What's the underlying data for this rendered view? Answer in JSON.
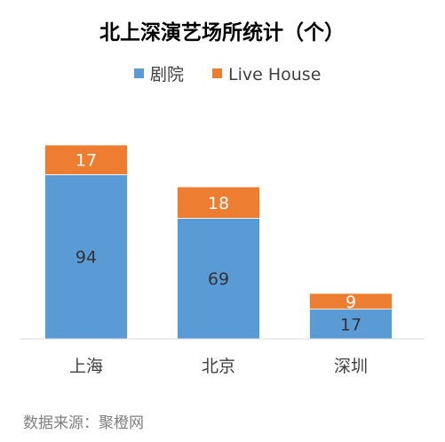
{
  "chart_data": {
    "type": "bar",
    "stacked": true,
    "title": "北上深演艺场所统计（个）",
    "categories": [
      "上海",
      "北京",
      "深圳"
    ],
    "series": [
      {
        "name": "剧院",
        "values": [
          94,
          69,
          17
        ],
        "color": "#5b9bd5"
      },
      {
        "name": "Live House",
        "values": [
          17,
          18,
          9
        ],
        "color": "#ed7d31"
      }
    ],
    "ylim": [
      0,
      111
    ],
    "grid": false,
    "legend_position": "top-center",
    "source": "数据来源：聚橙网"
  }
}
